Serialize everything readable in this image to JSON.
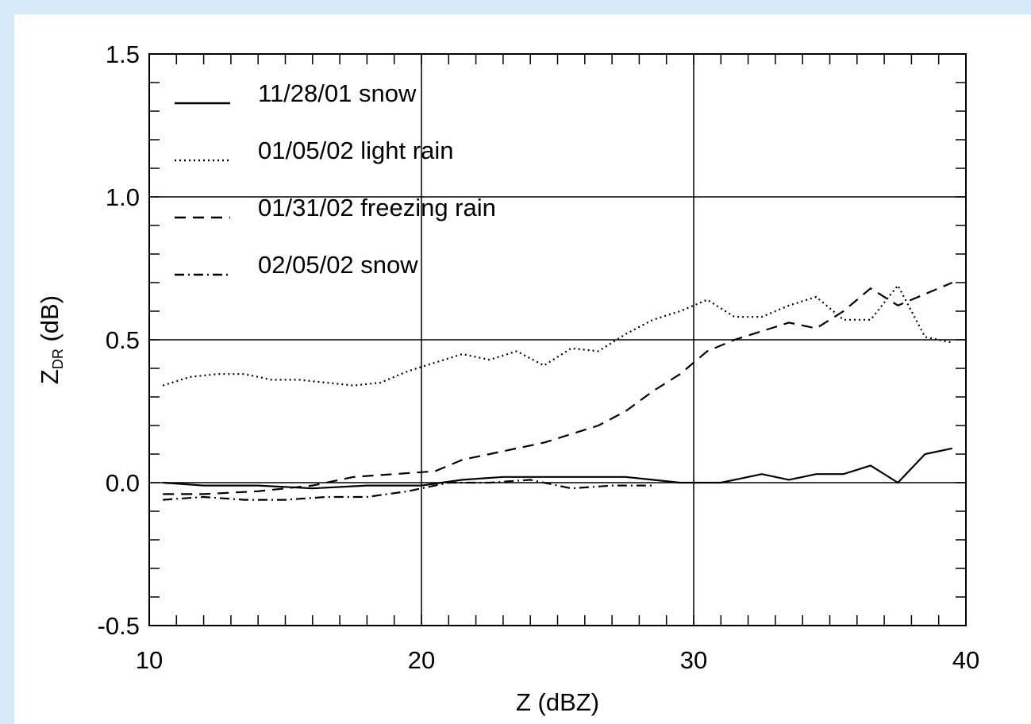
{
  "chart_data": {
    "type": "line",
    "title": "",
    "xlabel": "Z (dBZ)",
    "ylabel": {
      "main": "Z",
      "sub": "DR",
      "rest": " (dB)"
    },
    "xlim": [
      10,
      40
    ],
    "ylim": [
      -0.5,
      1.5
    ],
    "x_ticks": [
      "10",
      "20",
      "30",
      "40"
    ],
    "y_ticks": [
      "-0.5",
      "0.0",
      "0.5",
      "1.0",
      "1.5"
    ],
    "grid": "major",
    "legend_position": "top-left",
    "series": [
      {
        "name": "11/28/01 snow",
        "style": "solid",
        "points": [
          [
            10.5,
            0.0
          ],
          [
            12,
            -0.01
          ],
          [
            14,
            -0.01
          ],
          [
            16,
            -0.02
          ],
          [
            18,
            -0.01
          ],
          [
            20,
            -0.01
          ],
          [
            21.5,
            0.01
          ],
          [
            23,
            0.02
          ],
          [
            24.5,
            0.02
          ],
          [
            26,
            0.02
          ],
          [
            27.5,
            0.02
          ],
          [
            28.5,
            0.01
          ],
          [
            29.5,
            0.0
          ],
          [
            31,
            0.0
          ],
          [
            32.5,
            0.03
          ],
          [
            33.5,
            0.01
          ],
          [
            34.5,
            0.03
          ],
          [
            35.5,
            0.03
          ],
          [
            36.5,
            0.06
          ],
          [
            37.5,
            0.0
          ],
          [
            38.5,
            0.1
          ],
          [
            39.5,
            0.12
          ]
        ]
      },
      {
        "name": "01/05/02 light rain",
        "style": "dotted",
        "points": [
          [
            10.5,
            0.34
          ],
          [
            11.5,
            0.37
          ],
          [
            12.5,
            0.38
          ],
          [
            13.5,
            0.38
          ],
          [
            14.5,
            0.36
          ],
          [
            15.5,
            0.36
          ],
          [
            16.5,
            0.35
          ],
          [
            17.5,
            0.34
          ],
          [
            18.5,
            0.35
          ],
          [
            19.5,
            0.39
          ],
          [
            20.5,
            0.42
          ],
          [
            21.5,
            0.45
          ],
          [
            22.5,
            0.43
          ],
          [
            23.5,
            0.46
          ],
          [
            24.5,
            0.41
          ],
          [
            25.5,
            0.47
          ],
          [
            26.5,
            0.46
          ],
          [
            27.5,
            0.52
          ],
          [
            28.5,
            0.57
          ],
          [
            29.5,
            0.6
          ],
          [
            30.5,
            0.64
          ],
          [
            31.5,
            0.58
          ],
          [
            32.5,
            0.58
          ],
          [
            33.5,
            0.62
          ],
          [
            34.5,
            0.65
          ],
          [
            35.5,
            0.57
          ],
          [
            36.5,
            0.57
          ],
          [
            37.5,
            0.69
          ],
          [
            38.5,
            0.51
          ],
          [
            39.5,
            0.49
          ]
        ]
      },
      {
        "name": "01/31/02 freezing rain",
        "style": "dashed",
        "points": [
          [
            10.5,
            -0.04
          ],
          [
            12,
            -0.04
          ],
          [
            14,
            -0.03
          ],
          [
            16,
            -0.01
          ],
          [
            17.5,
            0.02
          ],
          [
            19,
            0.03
          ],
          [
            20.5,
            0.04
          ],
          [
            21.5,
            0.08
          ],
          [
            22.5,
            0.1
          ],
          [
            23.5,
            0.12
          ],
          [
            24.5,
            0.14
          ],
          [
            25.5,
            0.17
          ],
          [
            26.5,
            0.2
          ],
          [
            27.5,
            0.25
          ],
          [
            28.5,
            0.32
          ],
          [
            29.5,
            0.38
          ],
          [
            30.5,
            0.46
          ],
          [
            31.5,
            0.5
          ],
          [
            32.5,
            0.53
          ],
          [
            33.5,
            0.56
          ],
          [
            34.5,
            0.54
          ],
          [
            35.5,
            0.6
          ],
          [
            36.5,
            0.68
          ],
          [
            37.5,
            0.62
          ],
          [
            38.5,
            0.66
          ],
          [
            39.5,
            0.7
          ]
        ]
      },
      {
        "name": "02/05/02 snow",
        "style": "dashdot",
        "points": [
          [
            10.5,
            -0.06
          ],
          [
            12,
            -0.05
          ],
          [
            13.5,
            -0.06
          ],
          [
            15,
            -0.06
          ],
          [
            16.5,
            -0.05
          ],
          [
            18,
            -0.05
          ],
          [
            19.5,
            -0.03
          ],
          [
            21,
            0.0
          ],
          [
            22.5,
            0.0
          ],
          [
            24,
            0.01
          ],
          [
            25.5,
            -0.02
          ],
          [
            27,
            -0.01
          ],
          [
            28.5,
            -0.01
          ]
        ]
      }
    ]
  }
}
